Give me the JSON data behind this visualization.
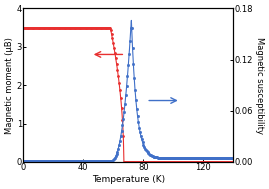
{
  "title": "",
  "xlabel": "Temperature (K)",
  "ylabel_left": "Magnetic moment (μB)",
  "ylabel_right": "Magnetic susceptibility",
  "xlim": [
    0,
    140
  ],
  "ylim_left": [
    0,
    4
  ],
  "ylim_right": [
    0,
    0.18
  ],
  "yticks_left": [
    0,
    1,
    2,
    3,
    4
  ],
  "yticks_right": [
    0.0,
    0.06,
    0.12,
    0.18
  ],
  "xticks": [
    0,
    40,
    80,
    120
  ],
  "red_color": "#e83030",
  "blue_color": "#4070c8",
  "bg_color": "#ffffff",
  "Tc": 67,
  "peak_T": 72
}
